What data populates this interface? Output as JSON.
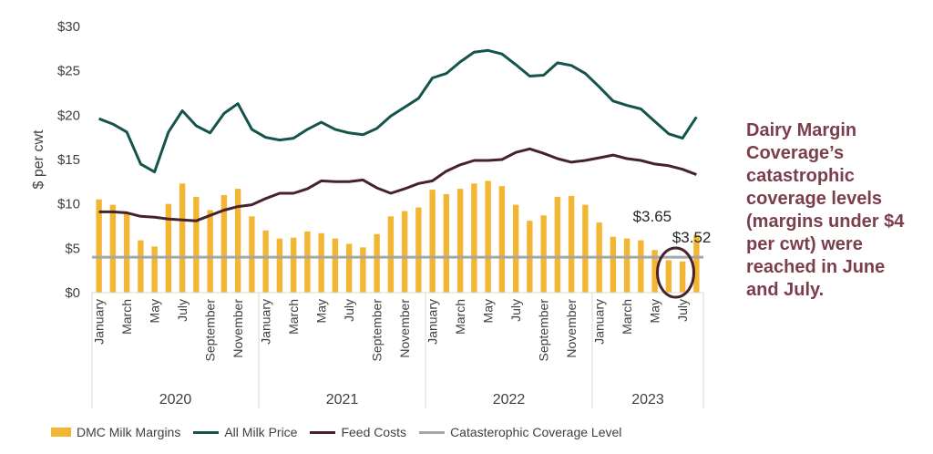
{
  "chart_data": {
    "type": "bar+line",
    "ylabel": "$ per cwt",
    "ylim": [
      0,
      30
    ],
    "yticks": [
      0,
      5,
      10,
      15,
      20,
      25,
      30
    ],
    "ytick_labels": [
      "$0",
      "$5",
      "$10",
      "$15",
      "$20",
      "$25",
      "$30"
    ],
    "months": [
      "Jan 2020",
      "Feb 2020",
      "Mar 2020",
      "Apr 2020",
      "May 2020",
      "Jun 2020",
      "Jul 2020",
      "Aug 2020",
      "Sep 2020",
      "Oct 2020",
      "Nov 2020",
      "Dec 2020",
      "Jan 2021",
      "Feb 2021",
      "Mar 2021",
      "Apr 2021",
      "May 2021",
      "Jun 2021",
      "Jul 2021",
      "Aug 2021",
      "Sep 2021",
      "Oct 2021",
      "Nov 2021",
      "Dec 2021",
      "Jan 2022",
      "Feb 2022",
      "Mar 2022",
      "Apr 2022",
      "May 2022",
      "Jun 2022",
      "Jul 2022",
      "Aug 2022",
      "Sep 2022",
      "Oct 2022",
      "Nov 2022",
      "Dec 2022",
      "Jan 2023",
      "Feb 2023",
      "Mar 2023",
      "Apr 2023",
      "May 2023",
      "Jun 2023",
      "Jul 2023",
      "Aug 2023"
    ],
    "month_tick_labels": [
      "January",
      "",
      "March",
      "",
      "May",
      "",
      "July",
      "",
      "September",
      "",
      "November",
      "",
      "January",
      "",
      "March",
      "",
      "May",
      "",
      "July",
      "",
      "September",
      "",
      "November",
      "",
      "January",
      "",
      "March",
      "",
      "May",
      "",
      "July",
      "",
      "September",
      "",
      "November",
      "",
      "January",
      "",
      "March",
      "",
      "May",
      "",
      "July",
      ""
    ],
    "years": [
      "2020",
      "2021",
      "2022",
      "2023"
    ],
    "series": [
      {
        "name": "DMC Milk Margins",
        "kind": "bar",
        "color": "#f2b632",
        "values": [
          10.5,
          9.9,
          9.0,
          5.9,
          5.2,
          10.0,
          12.3,
          10.8,
          9.3,
          11.0,
          11.7,
          8.6,
          7.0,
          6.1,
          6.2,
          6.9,
          6.7,
          6.1,
          5.5,
          5.1,
          6.6,
          8.6,
          9.2,
          9.6,
          11.6,
          11.1,
          11.7,
          12.3,
          12.6,
          12.0,
          9.9,
          8.1,
          8.7,
          10.8,
          10.9,
          9.9,
          7.9,
          6.3,
          6.1,
          5.9,
          4.8,
          3.65,
          3.52,
          6.5
        ]
      },
      {
        "name": "All Milk Price",
        "kind": "line",
        "color": "#14544c",
        "values": [
          19.6,
          19.0,
          18.1,
          14.5,
          13.6,
          18.1,
          20.5,
          18.8,
          18.0,
          20.2,
          21.3,
          18.4,
          17.5,
          17.2,
          17.4,
          18.4,
          19.2,
          18.4,
          18.0,
          17.8,
          18.5,
          19.9,
          20.9,
          21.9,
          24.2,
          24.7,
          26.0,
          27.1,
          27.3,
          26.9,
          25.7,
          24.4,
          24.5,
          25.9,
          25.6,
          24.7,
          23.2,
          21.6,
          21.1,
          20.7,
          19.3,
          17.9,
          17.4,
          19.8
        ]
      },
      {
        "name": "Feed Costs",
        "kind": "line",
        "color": "#45222c",
        "values": [
          9.1,
          9.1,
          9.0,
          8.6,
          8.5,
          8.3,
          8.2,
          8.1,
          8.7,
          9.3,
          9.7,
          9.9,
          10.6,
          11.2,
          11.2,
          11.7,
          12.6,
          12.5,
          12.5,
          12.7,
          11.8,
          11.2,
          11.7,
          12.3,
          12.6,
          13.7,
          14.4,
          14.9,
          14.9,
          15.0,
          15.8,
          16.2,
          15.7,
          15.1,
          14.7,
          14.9,
          15.2,
          15.5,
          15.1,
          14.9,
          14.5,
          14.3,
          13.9,
          13.3
        ]
      },
      {
        "name": "Catasterophic Coverage Level",
        "kind": "hline",
        "color": "#a6a6a6",
        "value": 4.0
      }
    ],
    "annotations": [
      {
        "text": "$3.65",
        "month": "Jun 2023",
        "value": 3.65
      },
      {
        "text": "$3.52",
        "month": "Jul 2023",
        "value": 3.52
      }
    ],
    "highlight_circle_color": "#45222c"
  },
  "callout": {
    "lines": [
      "Dairy Margin",
      "Coverage’s",
      "catastrophic",
      "coverage levels",
      "(margins under $4",
      "per cwt) were",
      "reached in June",
      "and July."
    ]
  },
  "legend": {
    "items": [
      {
        "label": "DMC Milk Margins",
        "swatch": "bar",
        "color": "#f2b632"
      },
      {
        "label": "All Milk Price",
        "swatch": "line",
        "color": "#14544c"
      },
      {
        "label": "Feed Costs",
        "swatch": "line",
        "color": "#45222c"
      },
      {
        "label": "Catasterophic Coverage Level",
        "swatch": "line",
        "color": "#a6a6a6"
      }
    ]
  }
}
